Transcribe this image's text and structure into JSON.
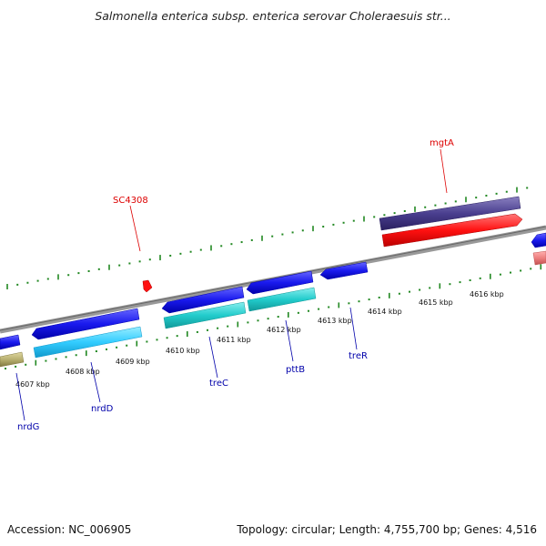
{
  "title": "Salmonella enterica subsp. enterica serovar Choleraesuis str...",
  "footer": {
    "accession": "Accession: NC_006905",
    "summary": "Topology: circular; Length: 4,755,700 bp; Genes: 4,516"
  },
  "scale": {
    "ticks": [
      {
        "label": "4607 kbp"
      },
      {
        "label": "4608 kbp"
      },
      {
        "label": "4609 kbp"
      },
      {
        "label": "4610 kbp"
      },
      {
        "label": "4611 kbp"
      },
      {
        "label": "4612 kbp"
      },
      {
        "label": "4613 kbp"
      },
      {
        "label": "4614 kbp"
      },
      {
        "label": "4615 kbp"
      },
      {
        "label": "4616 kbp"
      }
    ]
  },
  "features": [
    {
      "name": "SC4308",
      "color": "#dd0000"
    },
    {
      "name": "mgtA",
      "color": "#dd0000"
    },
    {
      "name": "nrdG",
      "color": "#0000aa"
    },
    {
      "name": "nrdD",
      "color": "#0000aa"
    },
    {
      "name": "treC",
      "color": "#0000aa"
    },
    {
      "name": "pttB",
      "color": "#0000aa"
    },
    {
      "name": "treR",
      "color": "#0000aa"
    }
  ],
  "colors": {
    "backbone": "#808080",
    "cds_blue": "#1a1aee",
    "cds_light_blue": "#33ccff",
    "cds_teal": "#22cccc",
    "cds_red": "#ff1111",
    "cds_purple": "#4a3f8f",
    "cds_olive": "#b8b070",
    "cds_pink": "#ee8080",
    "tick_green": "#228822"
  }
}
